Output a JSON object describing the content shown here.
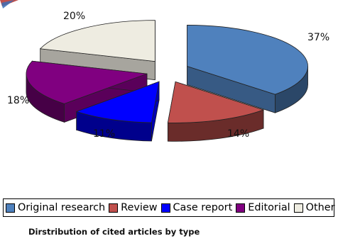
{
  "chart_data": {
    "type": "pie",
    "title": "",
    "categories": [
      "Original research",
      "Review",
      "Case report",
      "Editorial",
      "Other"
    ],
    "values": [
      37,
      14,
      11,
      18,
      20
    ],
    "value_labels": [
      "37%",
      "14%",
      "11%",
      "18%",
      "20%"
    ],
    "colors": [
      "#4f81bd",
      "#c0504d",
      "#0000ff",
      "#800080",
      "#eeece1"
    ],
    "style": "3d-exploded",
    "legend_position": "bottom"
  },
  "caption": "Dirstribution of cited articles by type"
}
